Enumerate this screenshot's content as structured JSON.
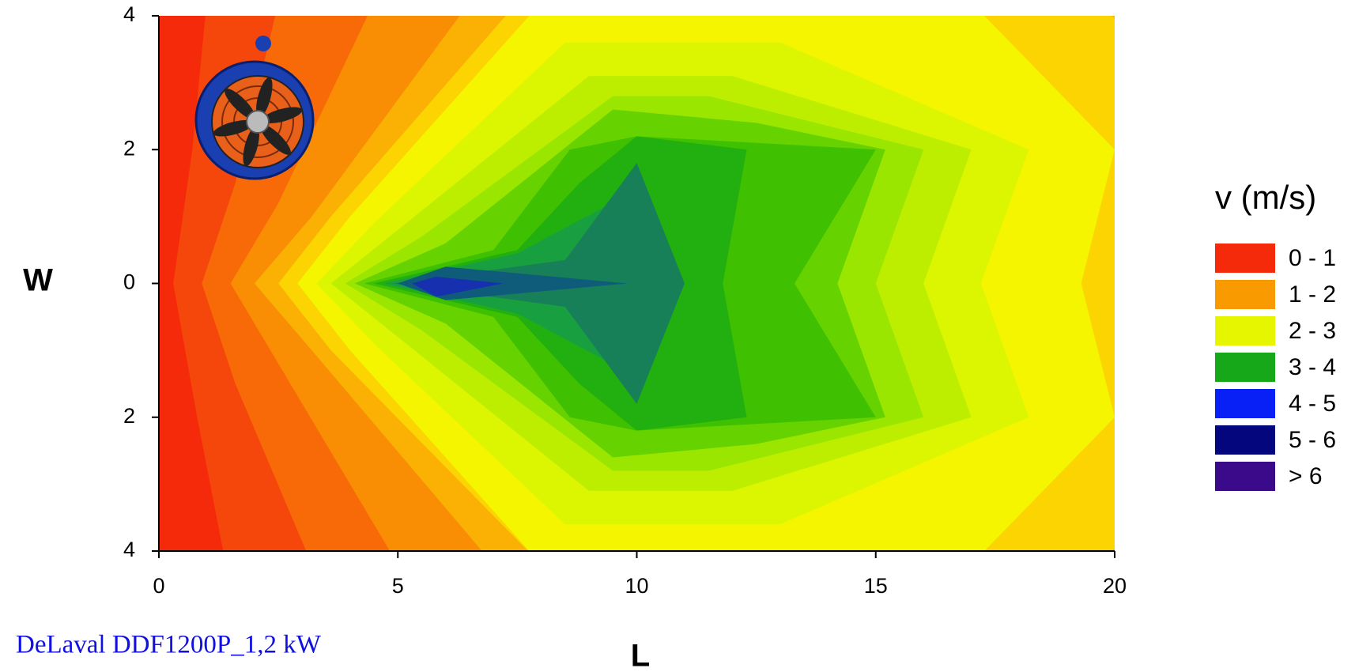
{
  "chart_data": {
    "type": "contour",
    "x_label": "L",
    "y_label": "W",
    "caption": "DeLaval DDF1200P_1,2 kW",
    "xlim": [
      0,
      20
    ],
    "xticks": [
      0,
      5,
      10,
      15,
      20
    ],
    "ylim": [
      -4,
      4
    ],
    "yticks": [
      {
        "value": -4,
        "label": "4"
      },
      {
        "value": -2,
        "label": "2"
      },
      0,
      2,
      4
    ],
    "background_color": "#f52a0a",
    "bands": [
      {
        "color": "#f5470b",
        "x": [
          0.3,
          0.7,
          1.0,
          21,
          21,
          1.4,
          0.8
        ],
        "y": [
          0,
          2,
          4.2,
          4.2,
          -4.2,
          -4.2,
          -2
        ]
      },
      {
        "color": "#f86a08",
        "x": [
          0.9,
          1.6,
          2.5,
          21,
          21,
          3.2,
          1.6
        ],
        "y": [
          0,
          1.5,
          4.2,
          4.2,
          -4.2,
          -4.2,
          -1.5
        ]
      },
      {
        "color": "#f98e05",
        "x": [
          1.5,
          2.5,
          4.5,
          21,
          21,
          5,
          2.5
        ],
        "y": [
          0,
          1.2,
          4.2,
          4.2,
          -4.2,
          -4.2,
          -1.2
        ]
      },
      {
        "color": "#fbb004",
        "x": [
          2.0,
          3.2,
          6.5,
          21,
          21,
          7,
          3.2
        ],
        "y": [
          0,
          1,
          4.2,
          4.2,
          -4.2,
          -4.2,
          -1
        ]
      },
      {
        "color": "#fcd402",
        "x": [
          2.5,
          3.6,
          7.5,
          19.5,
          21,
          21,
          19.5,
          8,
          3.6
        ],
        "y": [
          0,
          1,
          4.2,
          4.2,
          3.5,
          -3.5,
          -4.2,
          -4.2,
          -1
        ]
      },
      {
        "color": "#f5f500",
        "x": [
          2.9,
          4,
          8,
          17,
          20,
          19.3,
          20,
          17,
          8,
          4
        ],
        "y": [
          0,
          1,
          4.2,
          4.2,
          2,
          0,
          -2,
          -4.2,
          -4.2,
          -1
        ]
      },
      {
        "color": "#dcf500",
        "x": [
          3.3,
          4.5,
          8.5,
          13,
          18.2,
          17.2,
          18.2,
          13,
          8.5,
          4.5
        ],
        "y": [
          0,
          0.9,
          3.6,
          3.6,
          2,
          0,
          -2,
          -3.6,
          -3.6,
          -0.9
        ]
      },
      {
        "color": "#bdee00",
        "x": [
          3.6,
          5,
          9,
          12,
          17,
          16,
          17,
          12,
          9,
          5
        ],
        "y": [
          0,
          0.8,
          3.1,
          3.1,
          2,
          0,
          -2,
          -3.1,
          -3.1,
          -0.8
        ]
      },
      {
        "color": "#9ae600",
        "x": [
          3.9,
          5.5,
          9.5,
          11.5,
          16,
          15,
          16,
          11.5,
          9.5,
          5.5
        ],
        "y": [
          0,
          0.7,
          2.8,
          2.8,
          2,
          0,
          -2,
          -2.8,
          -2.8,
          -0.7
        ]
      },
      {
        "color": "#66d200",
        "x": [
          4.1,
          6,
          9.5,
          12.5,
          15.2,
          14.2,
          15.2,
          12.5,
          9.5,
          6
        ],
        "y": [
          0,
          0.6,
          2.6,
          2.4,
          2,
          0,
          -2,
          -2.4,
          -2.6,
          -0.6
        ]
      },
      {
        "color": "#3fc000",
        "x": [
          4.3,
          7,
          8.6,
          10,
          15,
          13.3,
          15,
          10,
          8.6,
          7
        ],
        "y": [
          0,
          0.5,
          2.0,
          2.2,
          2,
          0,
          -2,
          -2.2,
          -2.0,
          -0.5
        ]
      },
      {
        "color": "#22b010",
        "x": [
          4.5,
          7.5,
          8.8,
          10,
          12.3,
          11.8,
          12.3,
          10,
          8.8,
          7.5
        ],
        "y": [
          0,
          0.5,
          1.5,
          2.2,
          2.0,
          0,
          -2.0,
          -2.2,
          -1.5,
          -0.5
        ]
      },
      {
        "color": "#18a040",
        "x": [
          4.7,
          7.5,
          10,
          11,
          10,
          7.5
        ],
        "y": [
          0,
          0.45,
          1.4,
          0,
          -1.4,
          -0.45
        ]
      },
      {
        "color": "#178058",
        "x": [
          4.9,
          8.5,
          10,
          11,
          10,
          8.5
        ],
        "y": [
          0,
          0.35,
          1.8,
          0,
          -1.8,
          -0.35
        ]
      },
      {
        "color": "#0e5c7a",
        "x": [
          5.0,
          6,
          9.8,
          6
        ],
        "y": [
          0,
          0.25,
          0,
          -0.25
        ]
      },
      {
        "color": "#1630b0",
        "x": [
          5.3,
          5.8,
          7.2,
          5.8
        ],
        "y": [
          0,
          0.1,
          0,
          -0.2
        ]
      }
    ],
    "legend_title": "v (m/s)",
    "legend": [
      {
        "label": "0 - 1",
        "color": "#f52a0a"
      },
      {
        "label": "1 - 2",
        "color": "#f99a00"
      },
      {
        "label": "2 - 3",
        "color": "#e6f500"
      },
      {
        "label": "3 - 4",
        "color": "#16a818"
      },
      {
        "label": "4 - 5",
        "color": "#0820f5"
      },
      {
        "label": "5 - 6",
        "color": "#04067e"
      },
      {
        "label": "> 6",
        "color": "#3a0a8a"
      }
    ]
  }
}
